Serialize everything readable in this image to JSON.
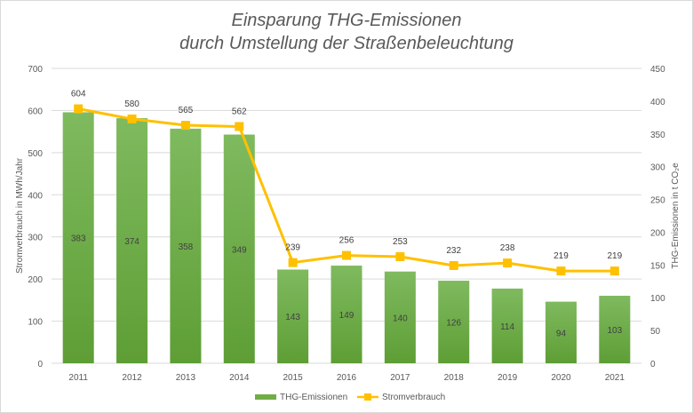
{
  "chart_data": {
    "type": "bar+line",
    "title_line1": "Einsparung THG-Emissionen",
    "title_line2": "durch Umstellung der Straßenbeleuchtung",
    "categories": [
      "2011",
      "2012",
      "2013",
      "2014",
      "2015",
      "2016",
      "2017",
      "2018",
      "2019",
      "2020",
      "2021"
    ],
    "series": [
      {
        "name": "THG-Emissionen",
        "type": "bar",
        "axis": "right",
        "color": "#70ad47",
        "values": [
          383,
          374,
          358,
          349,
          143,
          149,
          140,
          126,
          114,
          94,
          103
        ]
      },
      {
        "name": "Stromverbrauch",
        "type": "line",
        "axis": "left",
        "color": "#ffc000",
        "values": [
          604,
          580,
          565,
          562,
          239,
          256,
          253,
          232,
          238,
          219,
          219
        ]
      }
    ],
    "ylabel_left": "Stromverbrauch in MWh/Jahr",
    "ylabel_right": "THG-Emissionen in t CO₂e",
    "ylim_left": [
      0,
      700
    ],
    "ylim_right": [
      0,
      450
    ],
    "yticks_left": [
      "0",
      "100",
      "200",
      "300",
      "400",
      "500",
      "600",
      "700"
    ],
    "yticks_right": [
      "0",
      "50",
      "100",
      "150",
      "200",
      "250",
      "300",
      "350",
      "400",
      "450"
    ],
    "grid": true,
    "legend_position": "bottom"
  }
}
